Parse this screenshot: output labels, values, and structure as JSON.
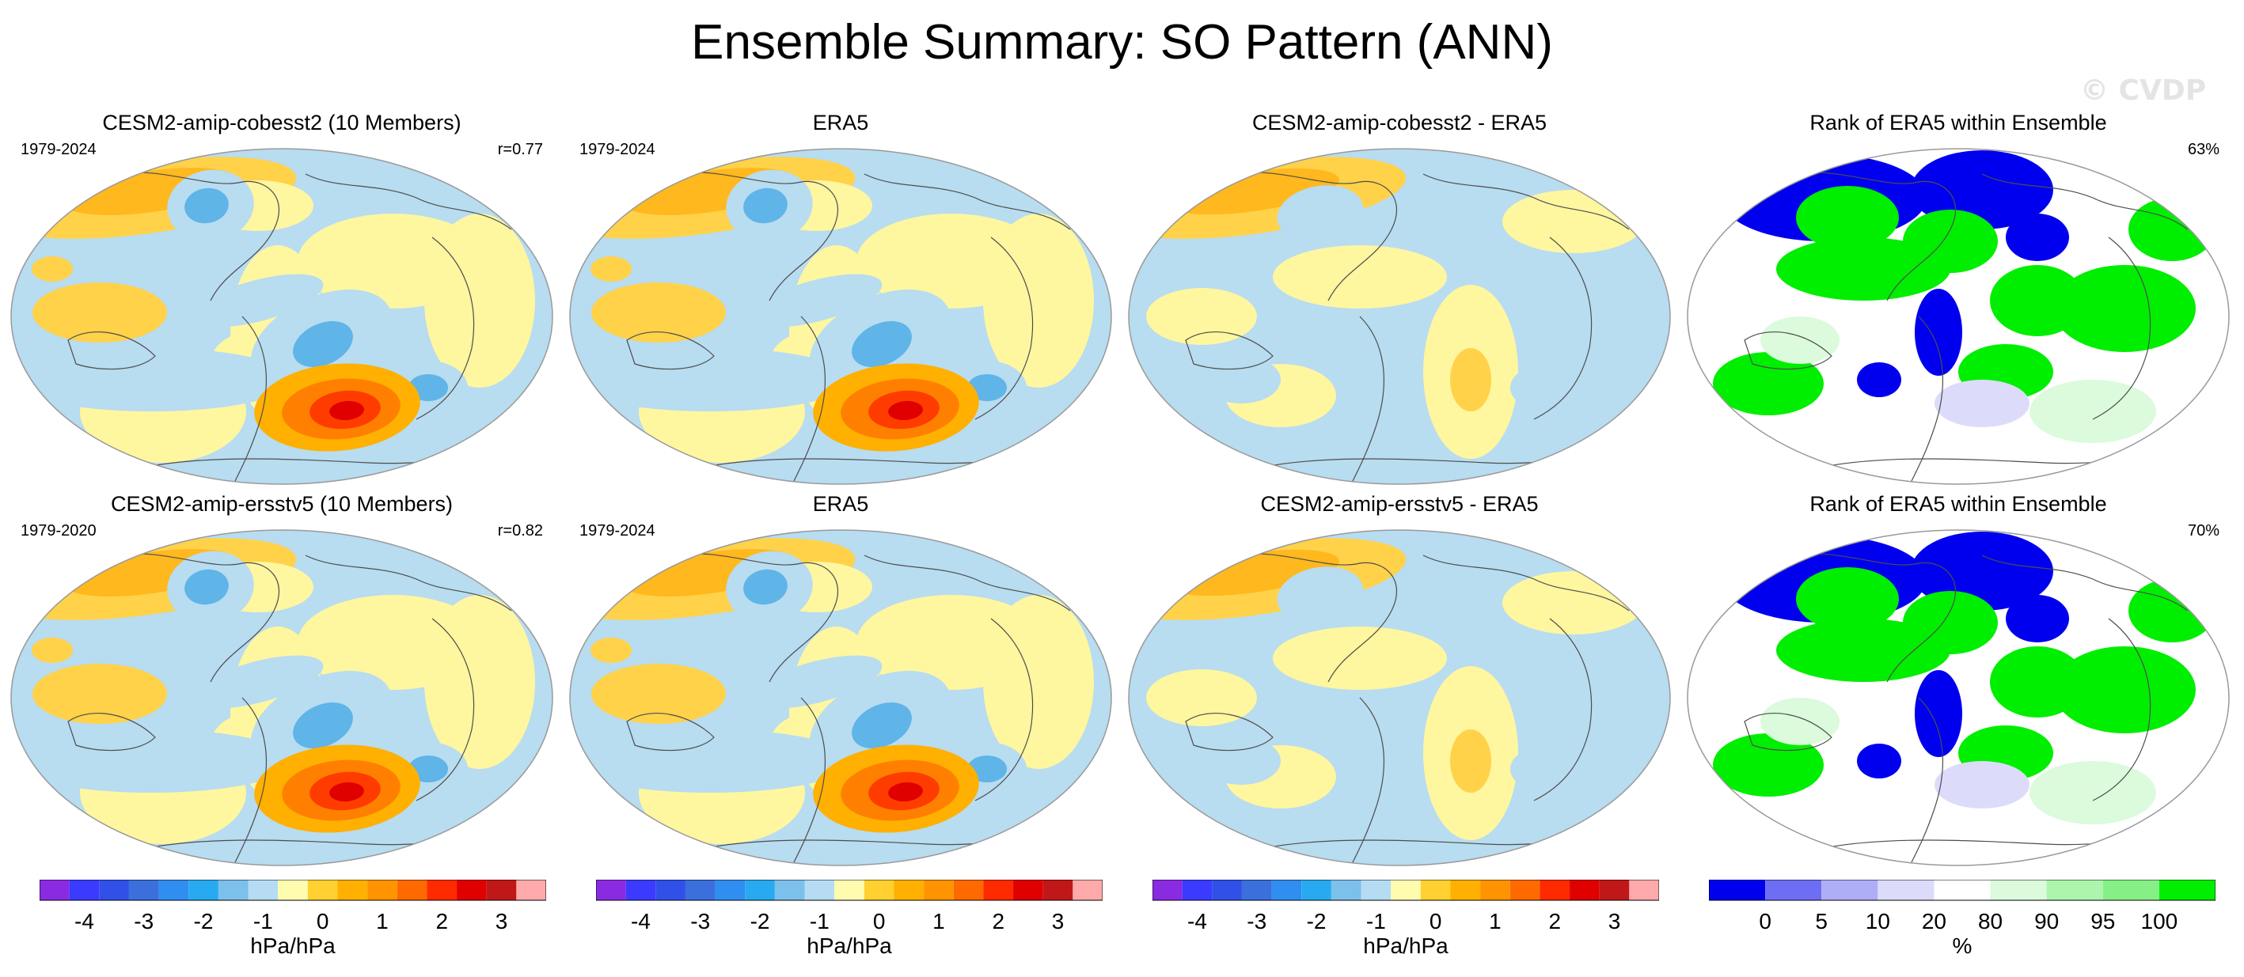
{
  "figure": {
    "title": "Ensemble Summary: SO Pattern (ANN)",
    "watermark": "© CVDP"
  },
  "colors": {
    "land_outline": "#4d4d4d",
    "map_border": "#9a9a9a"
  },
  "chart_data": [
    {
      "type": "heatmap",
      "title": "CESM2-amip-cobesst2 (10 Members)",
      "period": "1979-2024",
      "corr": "r=0.77",
      "field": "pattern",
      "high_cell_peak": 4.2
    },
    {
      "type": "heatmap",
      "title": "ERA5",
      "period": "1979-2024",
      "corr": "",
      "field": "pattern",
      "high_cell_peak": 3.4
    },
    {
      "type": "heatmap",
      "title": "CESM2-amip-cobesst2 - ERA5",
      "period": "",
      "corr": "",
      "field": "difference",
      "high_cell_peak": 1.2
    },
    {
      "type": "heatmap",
      "title": "Rank of ERA5 within Ensemble",
      "period": "",
      "corr": "63%",
      "field": "rank"
    },
    {
      "type": "heatmap",
      "title": "CESM2-amip-ersstv5 (10 Members)",
      "period": "1979-2020",
      "corr": "r=0.82",
      "field": "pattern",
      "high_cell_peak": 4.4
    },
    {
      "type": "heatmap",
      "title": "ERA5",
      "period": "1979-2024",
      "corr": "",
      "field": "pattern",
      "high_cell_peak": 3.3
    },
    {
      "type": "heatmap",
      "title": "CESM2-amip-ersstv5 - ERA5",
      "period": "",
      "corr": "",
      "field": "difference",
      "high_cell_peak": 1.3
    },
    {
      "type": "heatmap",
      "title": "Rank of ERA5 within Ensemble",
      "period": "",
      "corr": "70%",
      "field": "rank"
    }
  ],
  "colorbars": [
    {
      "unit": "hPa/hPa",
      "colors": [
        "#8a2be2",
        "#3b3bff",
        "#3050e8",
        "#3a6fdc",
        "#2f8ef0",
        "#28aaf0",
        "#7cc0ec",
        "#b5dcf2",
        "#fffcb0",
        "#ffd030",
        "#ffb000",
        "#ff9400",
        "#ff6a00",
        "#ff2a00",
        "#e00000",
        "#c01818",
        "#ffaaaa"
      ],
      "ticks": [
        "-4",
        "-3",
        "-2",
        "-1",
        "0",
        "1",
        "2",
        "3",
        "4"
      ]
    },
    {
      "unit": "hPa/hPa",
      "colors": [
        "#8a2be2",
        "#3b3bff",
        "#3050e8",
        "#3a6fdc",
        "#2f8ef0",
        "#28aaf0",
        "#7cc0ec",
        "#b5dcf2",
        "#fffcb0",
        "#ffd030",
        "#ffb000",
        "#ff9400",
        "#ff6a00",
        "#ff2a00",
        "#e00000",
        "#c01818",
        "#ffaaaa"
      ],
      "ticks": [
        "-4",
        "-3",
        "-2",
        "-1",
        "0",
        "1",
        "2",
        "3",
        "4"
      ]
    },
    {
      "unit": "hPa/hPa",
      "colors": [
        "#8a2be2",
        "#3b3bff",
        "#3050e8",
        "#3a6fdc",
        "#2f8ef0",
        "#28aaf0",
        "#7cc0ec",
        "#b5dcf2",
        "#fffcb0",
        "#ffd030",
        "#ffb000",
        "#ff9400",
        "#ff6a00",
        "#ff2a00",
        "#e00000",
        "#c01818",
        "#ffaaaa"
      ],
      "ticks": [
        "-4",
        "-3",
        "-2",
        "-1",
        "0",
        "1",
        "2",
        "3",
        "4"
      ]
    },
    {
      "unit": "%",
      "colors": [
        "#0000ee",
        "#6e6ef4",
        "#aeaef6",
        "#dcdcfa",
        "#ffffff",
        "#dcfadc",
        "#acf5ac",
        "#86f086",
        "#00ee00"
      ],
      "ticks": [
        "0",
        "5",
        "10",
        "20",
        "80",
        "90",
        "95",
        "100"
      ],
      "tick_values": [
        0,
        5,
        10,
        20,
        80,
        90,
        95,
        100
      ]
    }
  ]
}
